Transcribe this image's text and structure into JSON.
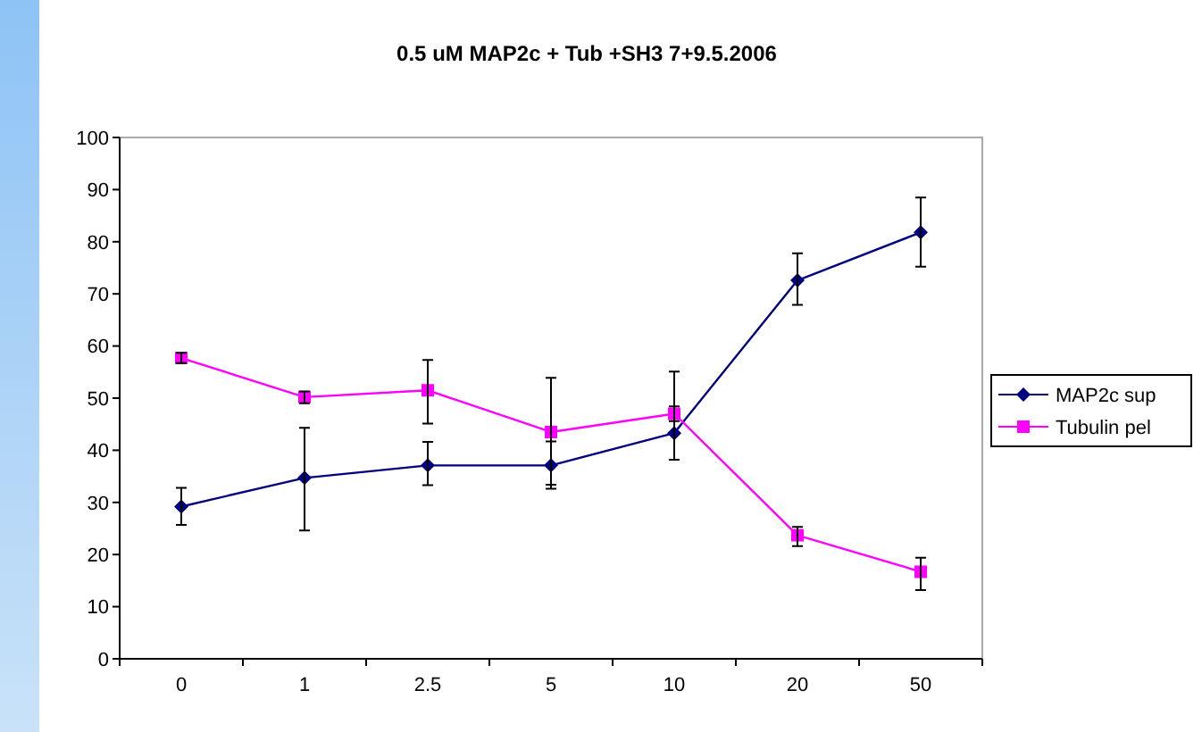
{
  "chart_data": {
    "type": "line",
    "title": "0.5 uM MAP2c + Tub +SH3 7+9.5.2006",
    "categories": [
      "0",
      "1",
      "2.5",
      "5",
      "10",
      "20",
      "50"
    ],
    "series": [
      {
        "name": "MAP2c sup",
        "color": "#000080",
        "marker": "diamond",
        "values": [
          29.2,
          34.7,
          37.1,
          37.1,
          43.3,
          72.6,
          81.8
        ],
        "errors": [
          [
            25.7,
            32.8
          ],
          [
            24.6,
            44.3
          ],
          [
            33.3,
            41.6
          ],
          [
            32.6,
            41.7
          ],
          [
            38.2,
            55.1
          ],
          [
            67.9,
            77.8
          ],
          [
            75.2,
            88.5
          ]
        ]
      },
      {
        "name": "Tubulin pel",
        "color": "#ff00ff",
        "marker": "square",
        "values": [
          57.7,
          50.2,
          51.5,
          43.5,
          47.0,
          23.7,
          16.7
        ],
        "errors": [
          [
            56.7,
            58.7
          ],
          [
            49.0,
            51.3
          ],
          [
            45.1,
            57.3
          ],
          [
            33.4,
            53.9
          ],
          [
            45.6,
            48.4
          ],
          [
            21.6,
            25.3
          ],
          [
            13.2,
            19.4
          ]
        ]
      }
    ],
    "ylim": [
      0,
      100
    ],
    "yticks": [
      0,
      10,
      20,
      30,
      40,
      50,
      60,
      70,
      80,
      90,
      100
    ],
    "grid": false,
    "legend": "right"
  }
}
